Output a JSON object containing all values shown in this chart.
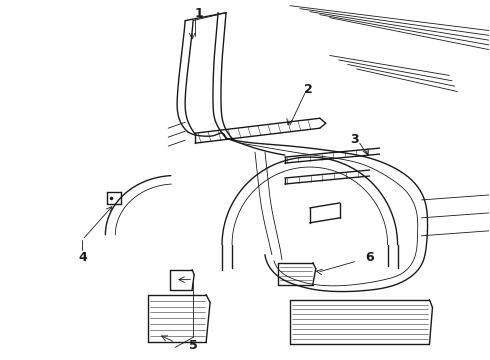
{
  "background_color": "#ffffff",
  "line_color": "#1a1a1a",
  "fig_width": 4.9,
  "fig_height": 3.6,
  "dpi": 100,
  "label_fontsize": 8,
  "label_fontweight": "bold"
}
